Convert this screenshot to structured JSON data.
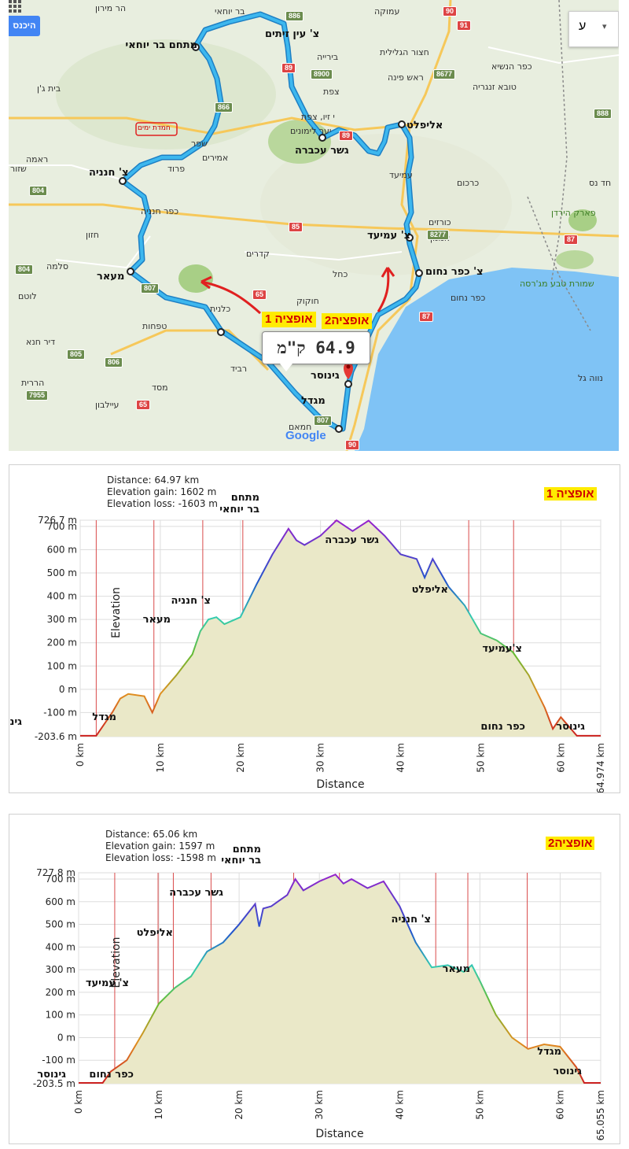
{
  "map": {
    "signin_label": "היכנס",
    "lang_label": "ע",
    "lang_arrow": "▾",
    "distance_label": "64.9 ק\"מ",
    "option1_label": "אופציה 1",
    "option2_label": "אופציה2",
    "google_logo": "Google",
    "colors": {
      "route": "#2aa7e0",
      "water": "#7fc3f5",
      "option_bg": "#ffeb00",
      "option_text": "#d00000",
      "arrow": "#e02020"
    },
    "labels": [
      "הר מירון",
      "בר יוחאי",
      "עמוקה",
      "בירייה",
      "חצור הגלילית",
      "ראש פינה",
      "כפר הנשיא",
      "טובא זנגריה",
      "בית ג'ן",
      "צפת",
      "יער לימונים",
      "שפר",
      "אמירים",
      "פרוד",
      "ראמה",
      "שזור",
      "צ' חנניה",
      "כפר חנניה",
      "חזון",
      "סלמה",
      "לוטם",
      "דיר חנא",
      "הררית",
      "עיילבון",
      "מסד",
      "רביד",
      "טפחות",
      "כלנית",
      "חוקוק",
      "כחל",
      "קדרים",
      "עמיעד",
      "כורזים",
      "כרכום",
      "אמנון",
      "כפר נחום",
      "שמורת טבע מג'רסה",
      "פארק הירדן",
      "חד נס",
      "נווה גל",
      "חמאם",
      "י זיו, צפת",
      "חמדת ימים"
    ],
    "stops": {
      "bar_yochai": "מתחם בר יוחאי",
      "ein_zeitim": "צ' עין זיתים",
      "hananya": "צ' חנניה",
      "meaar": "מעאר",
      "gesher": "גשר עכברה",
      "alifelet": "אליפלט",
      "amiad": "צ' עמיעד",
      "kfar_nahum": "צ' כפר נחום",
      "ginosar": "גינוסר",
      "migdal": "מגדל"
    },
    "roads": [
      "886",
      "90",
      "91",
      "89",
      "8900",
      "8677",
      "866",
      "89",
      "888",
      "804",
      "85",
      "8277",
      "87",
      "804",
      "807",
      "65",
      "87",
      "805",
      "806",
      "7955",
      "65",
      "807",
      "90"
    ]
  },
  "profiles": [
    {
      "option_label": "אופציה 1",
      "stats": [
        "Distance: 64.97 km",
        "Elevation gain: 1602 m",
        "Elevation loss: -1603 m"
      ],
      "y_ticks": [
        "726.7 m",
        "700 m",
        "600 m",
        "500 m",
        "400 m",
        "300 m",
        "200 m",
        "100 m",
        "0 m",
        "-100 m",
        "-203.6 m"
      ],
      "x_ticks": [
        "0 km",
        "10 km",
        "20 km",
        "30 km",
        "40 km",
        "50 km",
        "60 km",
        "64.974 km"
      ],
      "xlabel": "Distance",
      "ylabel": "Elevation",
      "annotations": [
        "מתחם",
        "בר יוחאי",
        "גשר עכברה",
        "אליפלט",
        "צ' חנניה",
        "מעאר",
        "צ'עמיעד",
        "מגדל",
        "גינוסר",
        "כפר נחום",
        "גינוסר"
      ]
    },
    {
      "option_label": "אופציה2",
      "stats": [
        "Distance: 65.06 km",
        "Elevation gain: 1597 m",
        "Elevation loss: -1598 m"
      ],
      "y_ticks": [
        "727.8 m",
        "700 m",
        "600 m",
        "500 m",
        "400 m",
        "300 m",
        "200 m",
        "100 m",
        "0 m",
        "-100 m",
        "-203.5 m"
      ],
      "x_ticks": [
        "0 km",
        "10 km",
        "20 km",
        "30 km",
        "40 km",
        "50 km",
        "60 km",
        "65.055 km"
      ],
      "xlabel": "Distance",
      "ylabel": "Elevation",
      "annotations": [
        "מתחם",
        "בר יוחאי",
        "גשר עכברה",
        "אליפלט",
        "צ' עמיעד",
        "צ' חנניה",
        "מעאר",
        "מגדל",
        "גינוסר",
        "כפר נחום",
        "גינוסר"
      ]
    }
  ],
  "chart_data": [
    {
      "type": "area",
      "title": "",
      "xlabel": "Distance",
      "ylabel": "Elevation",
      "xlim": [
        0,
        64.974
      ],
      "ylim": [
        -203.6,
        726.7
      ],
      "x": [
        0,
        2,
        4,
        5,
        6,
        8,
        9,
        10,
        12,
        14,
        15,
        16,
        17,
        18,
        20,
        22,
        24,
        26,
        27,
        28,
        30,
        32,
        34,
        36,
        38,
        40,
        42,
        43,
        44,
        46,
        48,
        50,
        52,
        54,
        56,
        58,
        59,
        60,
        62,
        64.974
      ],
      "series": [
        {
          "values": [
            -200,
            -200,
            -100,
            -40,
            -20,
            -30,
            -100,
            -20,
            60,
            150,
            250,
            300,
            310,
            280,
            310,
            450,
            580,
            690,
            640,
            620,
            660,
            726,
            680,
            725,
            660,
            580,
            560,
            480,
            560,
            440,
            360,
            240,
            210,
            160,
            60,
            -80,
            -170,
            -120,
            -200,
            -200
          ]
        }
      ]
    },
    {
      "type": "area",
      "title": "",
      "xlabel": "Distance",
      "ylabel": "Elevation",
      "xlim": [
        0,
        65.055
      ],
      "ylim": [
        -203.5,
        727.8
      ],
      "x": [
        0,
        3,
        4,
        6,
        8,
        10,
        12,
        14,
        16,
        18,
        20,
        22,
        22.5,
        23,
        24,
        26,
        27,
        28,
        30,
        32,
        33,
        34,
        36,
        38,
        40,
        42,
        44,
        46,
        48,
        49,
        50,
        52,
        54,
        56,
        58,
        60,
        62,
        63,
        65.055
      ],
      "series": [
        {
          "values": [
            -200,
            -200,
            -150,
            -100,
            20,
            150,
            220,
            270,
            380,
            420,
            500,
            590,
            490,
            570,
            580,
            630,
            700,
            650,
            690,
            720,
            680,
            700,
            660,
            690,
            580,
            420,
            310,
            320,
            290,
            320,
            250,
            100,
            0,
            -50,
            -30,
            -40,
            -130,
            -200,
            -200
          ]
        }
      ]
    }
  ]
}
